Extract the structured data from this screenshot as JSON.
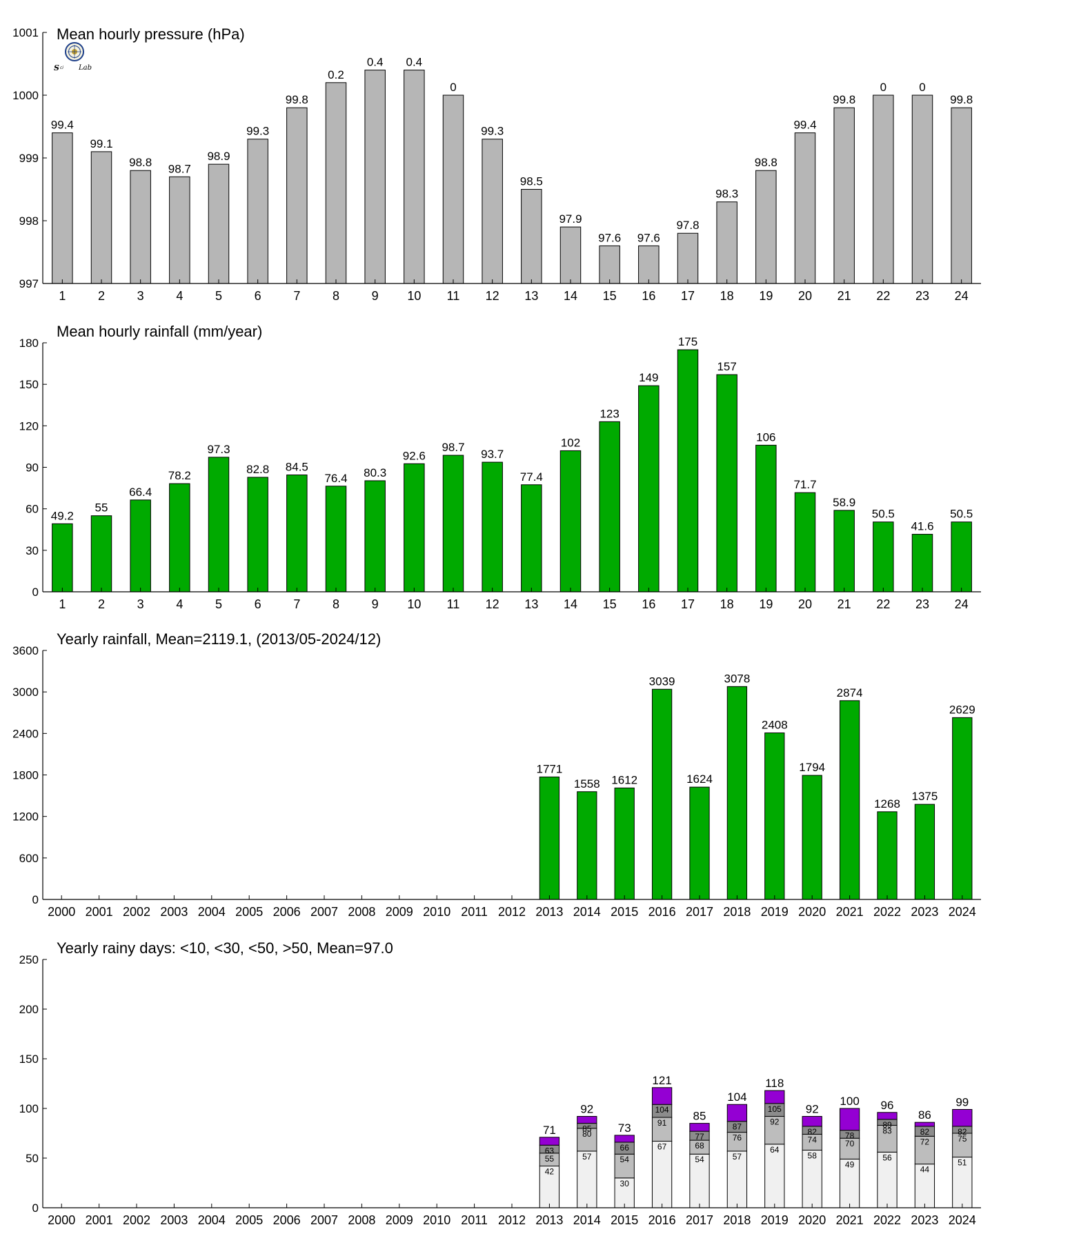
{
  "colors": {
    "pressure_bar": "#b6b6b6",
    "rain_bar": "#00aa00",
    "days_lt10": "#f0f0f0",
    "days_lt30": "#bdbdbd",
    "days_lt50": "#8c8c8c",
    "days_gt50": "#9400d3"
  },
  "logo": {
    "icon": "lab-seal-logo",
    "text": "Sci Lab"
  },
  "chart_data": [
    {
      "id": "pressure",
      "type": "bar",
      "title": "Mean hourly pressure (hPa)",
      "xlabel": "",
      "ylabel": "",
      "categories": [
        "1",
        "2",
        "3",
        "4",
        "5",
        "6",
        "7",
        "8",
        "9",
        "10",
        "11",
        "12",
        "13",
        "14",
        "15",
        "16",
        "17",
        "18",
        "19",
        "20",
        "21",
        "22",
        "23",
        "24"
      ],
      "values": [
        999.4,
        999.1,
        998.8,
        998.7,
        998.9,
        999.3,
        999.8,
        1000.2,
        1000.4,
        1000.4,
        1000.0,
        999.3,
        998.5,
        997.9,
        997.6,
        997.6,
        997.8,
        998.3,
        998.8,
        999.4,
        999.8,
        1000.0,
        1000.0,
        999.8
      ],
      "value_labels": [
        "99.4",
        "99.1",
        "98.8",
        "98.7",
        "98.9",
        "99.3",
        "99.8",
        "0.2",
        "0.4",
        "0.4",
        "0",
        "99.3",
        "98.5",
        "97.9",
        "97.6",
        "97.6",
        "97.8",
        "98.3",
        "98.8",
        "99.4",
        "99.8",
        "0",
        "0",
        "99.8"
      ],
      "ylim": [
        997,
        1001
      ],
      "yticks": [
        "997",
        "998",
        "999",
        "1000",
        "1001"
      ],
      "grid": false,
      "color_key": "pressure_bar"
    },
    {
      "id": "hourly_rain",
      "type": "bar",
      "title": "Mean hourly rainfall (mm/year)",
      "xlabel": "",
      "ylabel": "",
      "categories": [
        "1",
        "2",
        "3",
        "4",
        "5",
        "6",
        "7",
        "8",
        "9",
        "10",
        "11",
        "12",
        "13",
        "14",
        "15",
        "16",
        "17",
        "18",
        "19",
        "20",
        "21",
        "22",
        "23",
        "24"
      ],
      "values": [
        49.2,
        55,
        66.4,
        78.2,
        97.3,
        82.8,
        84.5,
        76.4,
        80.3,
        92.6,
        98.7,
        93.7,
        77.4,
        102,
        123,
        149,
        175,
        157,
        106,
        71.7,
        58.9,
        50.5,
        41.6,
        50.5
      ],
      "value_labels": [
        "49.2",
        "55",
        "66.4",
        "78.2",
        "97.3",
        "82.8",
        "84.5",
        "76.4",
        "80.3",
        "92.6",
        "98.7",
        "93.7",
        "77.4",
        "102",
        "123",
        "149",
        "175",
        "157",
        "106",
        "71.7",
        "58.9",
        "50.5",
        "41.6",
        "50.5"
      ],
      "ylim": [
        0,
        180
      ],
      "yticks": [
        "0",
        "30",
        "60",
        "90",
        "120",
        "150",
        "180"
      ],
      "grid": false,
      "color_key": "rain_bar"
    },
    {
      "id": "yearly_rain",
      "type": "bar",
      "title": "Yearly rainfall, Mean=2119.1, (2013/05-2024/12)",
      "xlabel": "",
      "ylabel": "",
      "categories": [
        "2000",
        "2001",
        "2002",
        "2003",
        "2004",
        "2005",
        "2006",
        "2007",
        "2008",
        "2009",
        "2010",
        "2011",
        "2012",
        "2013",
        "2014",
        "2015",
        "2016",
        "2017",
        "2018",
        "2019",
        "2020",
        "2021",
        "2022",
        "2023",
        "2024"
      ],
      "values": [
        null,
        null,
        null,
        null,
        null,
        null,
        null,
        null,
        null,
        null,
        null,
        null,
        null,
        1771,
        1558,
        1612,
        3039,
        1624,
        3078,
        2408,
        1794,
        2874,
        1268,
        1375,
        2629
      ],
      "value_labels": [
        "",
        "",
        "",
        "",
        "",
        "",
        "",
        "",
        "",
        "",
        "",
        "",
        "",
        "1771",
        "1558",
        "1612",
        "3039",
        "1624",
        "3078",
        "2408",
        "1794",
        "2874",
        "1268",
        "1375",
        "2629"
      ],
      "ylim": [
        0,
        3600
      ],
      "yticks": [
        "0",
        "600",
        "1200",
        "1800",
        "2400",
        "3000",
        "3600"
      ],
      "grid": false,
      "color_key": "rain_bar"
    },
    {
      "id": "rainy_days",
      "type": "bar",
      "stacked": true,
      "title": "Yearly rainy days: <10, <30, <50, >50, Mean=97.0",
      "xlabel": "",
      "ylabel": "",
      "categories": [
        "2000",
        "2001",
        "2002",
        "2003",
        "2004",
        "2005",
        "2006",
        "2007",
        "2008",
        "2009",
        "2010",
        "2011",
        "2012",
        "2013",
        "2014",
        "2015",
        "2016",
        "2017",
        "2018",
        "2019",
        "2020",
        "2021",
        "2022",
        "2023",
        "2024"
      ],
      "series": [
        {
          "name": "<10",
          "color_key": "days_lt10",
          "cumulative": [
            null,
            null,
            null,
            null,
            null,
            null,
            null,
            null,
            null,
            null,
            null,
            null,
            null,
            42,
            57,
            30,
            67,
            54,
            57,
            64,
            58,
            49,
            56,
            44,
            51
          ]
        },
        {
          "name": "<30",
          "color_key": "days_lt30",
          "cumulative": [
            null,
            null,
            null,
            null,
            null,
            null,
            null,
            null,
            null,
            null,
            null,
            null,
            null,
            55,
            80,
            54,
            91,
            68,
            76,
            92,
            74,
            70,
            83,
            72,
            75
          ]
        },
        {
          "name": "<50",
          "color_key": "days_lt50",
          "cumulative": [
            null,
            null,
            null,
            null,
            null,
            null,
            null,
            null,
            null,
            null,
            null,
            null,
            null,
            63,
            85,
            66,
            104,
            77,
            87,
            105,
            82,
            78,
            89,
            82,
            82
          ]
        },
        {
          "name": ">50",
          "color_key": "days_gt50",
          "cumulative": [
            null,
            null,
            null,
            null,
            null,
            null,
            null,
            null,
            null,
            null,
            null,
            null,
            null,
            71,
            92,
            73,
            121,
            85,
            104,
            118,
            92,
            100,
            96,
            86,
            99
          ]
        }
      ],
      "inner_labels": [
        [
          "",
          "",
          "",
          "",
          "",
          "",
          "",
          "",
          "",
          "",
          "",
          "",
          "",
          "42",
          "57",
          "30",
          "67",
          "54",
          "57",
          "64",
          "58",
          "49",
          "56",
          "44",
          "51"
        ],
        [
          "",
          "",
          "",
          "",
          "",
          "",
          "",
          "",
          "",
          "",
          "",
          "",
          "",
          "55",
          "80",
          "54",
          "91",
          "68",
          "76",
          "92",
          "74",
          "70",
          "83",
          "72",
          "75"
        ],
        [
          "",
          "",
          "",
          "",
          "",
          "",
          "",
          "",
          "",
          "",
          "",
          "",
          "",
          "63",
          "85",
          "66",
          "104",
          "77",
          "87",
          "105",
          "82",
          "78",
          "89",
          "82",
          "82"
        ]
      ],
      "total_labels": [
        "",
        "",
        "",
        "",
        "",
        "",
        "",
        "",
        "",
        "",
        "",
        "",
        "",
        "71",
        "92",
        "73",
        "121",
        "85",
        "104",
        "118",
        "92",
        "100",
        "96",
        "86",
        "99"
      ],
      "ylim": [
        0,
        250
      ],
      "yticks": [
        "0",
        "50",
        "100",
        "150",
        "200",
        "250"
      ],
      "grid": false
    }
  ]
}
